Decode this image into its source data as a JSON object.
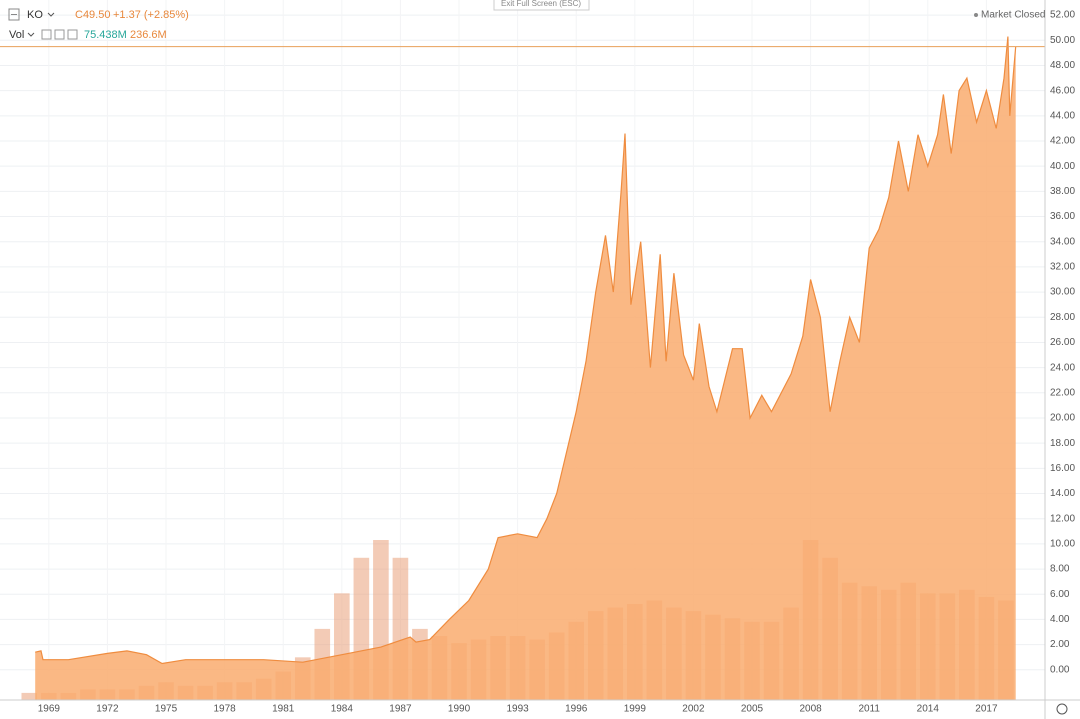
{
  "header": {
    "symbol": "KO",
    "close": "C49.50",
    "change": "+1.37 (+2.85%)",
    "vol_label": "Vol",
    "vol_value": "75.438M",
    "vol_avg": "236.6M",
    "status": "Market Closed",
    "fullscreen": "Exit Full Screen (ESC)"
  },
  "chart_data": {
    "type": "area",
    "series": [
      {
        "name": "KO",
        "color": "#ef8c3f",
        "x": [
          1968.3,
          1968.6,
          1968.7,
          1970,
          1972,
          1973,
          1974,
          1974.8,
          1976,
          1980,
          1982,
          1984,
          1986,
          1987.5,
          1987.8,
          1988.5,
          1989.5,
          1990.5,
          1991.5,
          1992,
          1993,
          1994,
          1994.5,
          1995,
          1996,
          1996.5,
          1997,
          1997.5,
          1997.9,
          1998.3,
          1998.5,
          1998.8,
          1999.3,
          1999.8,
          2000.3,
          2000.6,
          2001,
          2001.5,
          2002,
          2002.3,
          2002.8,
          2003.2,
          2003.6,
          2004,
          2004.5,
          2004.9,
          2005.5,
          2006,
          2007,
          2007.6,
          2008,
          2008.5,
          2009,
          2009.5,
          2010,
          2010.5,
          2011,
          2011.5,
          2012,
          2012.5,
          2013,
          2013.5,
          2014,
          2014.5,
          2014.8,
          2015.2,
          2015.6,
          2016,
          2016.5,
          2017,
          2017.5,
          2017.9,
          2018.1,
          2018.2,
          2018.5
        ],
        "values": [
          1.4,
          1.5,
          0.8,
          0.8,
          1.3,
          1.5,
          1.2,
          0.5,
          0.8,
          0.8,
          0.6,
          1.2,
          1.8,
          2.6,
          2.2,
          2.4,
          4.0,
          5.5,
          8.0,
          10.5,
          10.8,
          10.5,
          12.0,
          14.0,
          20.5,
          24.5,
          30.0,
          34.5,
          30.0,
          38.0,
          42.6,
          29.0,
          34.0,
          24.0,
          33.0,
          24.5,
          31.5,
          25.0,
          23.0,
          27.5,
          22.5,
          20.5,
          23.0,
          25.5,
          25.5,
          20.0,
          21.8,
          20.5,
          23.5,
          26.5,
          31.0,
          28.0,
          20.5,
          24.5,
          28.0,
          26.0,
          33.5,
          35.0,
          37.5,
          42.0,
          38.0,
          42.5,
          40.0,
          42.5,
          45.7,
          41.0,
          46.0,
          47.0,
          43.5,
          46.0,
          43.0,
          47.0,
          50.3,
          44.0,
          49.5
        ]
      }
    ],
    "volume": {
      "color": "#e9a07a",
      "x": [
        1968,
        1969,
        1970,
        1971,
        1972,
        1973,
        1974,
        1975,
        1976,
        1977,
        1978,
        1979,
        1980,
        1981,
        1982,
        1983,
        1984,
        1985,
        1986,
        1987,
        1988,
        1989,
        1990,
        1991,
        1992,
        1993,
        1994,
        1995,
        1996,
        1997,
        1998,
        1999,
        2000,
        2001,
        2002,
        2003,
        2004,
        2005,
        2006,
        2007,
        2008,
        2009,
        2010,
        2011,
        2012,
        2013,
        2014,
        2015,
        2016,
        2017,
        2018
      ],
      "values": [
        2,
        2,
        2,
        3,
        3,
        3,
        4,
        5,
        4,
        4,
        5,
        5,
        6,
        8,
        12,
        20,
        30,
        40,
        45,
        40,
        20,
        18,
        16,
        17,
        18,
        18,
        17,
        19,
        22,
        25,
        26,
        27,
        28,
        26,
        25,
        24,
        23,
        22,
        22,
        26,
        45,
        40,
        33,
        32,
        31,
        33,
        30,
        30,
        31,
        29,
        28
      ]
    },
    "last_price": 49.5,
    "xlim": [
      1966.5,
      2020
    ],
    "xticks": [
      1969,
      1972,
      1975,
      1978,
      1981,
      1984,
      1987,
      1990,
      1993,
      1996,
      1999,
      2002,
      2005,
      2008,
      2011,
      2014,
      2017
    ],
    "ylim": [
      -2.4,
      53.2
    ],
    "yticks": [
      {
        "value": 0,
        "label": "0.00"
      },
      {
        "value": 2,
        "label": "2.00"
      },
      {
        "value": 4,
        "label": "4.00"
      },
      {
        "value": 6,
        "label": "6.00"
      },
      {
        "value": 8,
        "label": "8.00"
      },
      {
        "value": 10,
        "label": "10.00"
      },
      {
        "value": 12,
        "label": "12.00"
      },
      {
        "value": 14,
        "label": "14.00"
      },
      {
        "value": 16,
        "label": "16.00"
      },
      {
        "value": 18,
        "label": "18.00"
      },
      {
        "value": 20,
        "label": "20.00"
      },
      {
        "value": 22,
        "label": "22.00"
      },
      {
        "value": 24,
        "label": "24.00"
      },
      {
        "value": 26,
        "label": "26.00"
      },
      {
        "value": 28,
        "label": "28.00"
      },
      {
        "value": 30,
        "label": "30.00"
      },
      {
        "value": 32,
        "label": "32.00"
      },
      {
        "value": 34,
        "label": "34.00"
      },
      {
        "value": 36,
        "label": "36.00"
      },
      {
        "value": 38,
        "label": "38.00"
      },
      {
        "value": 40,
        "label": "40.00"
      },
      {
        "value": 42,
        "label": "42.00"
      },
      {
        "value": 44,
        "label": "44.00"
      },
      {
        "value": 46,
        "label": "46.00"
      },
      {
        "value": 48,
        "label": "48.00"
      },
      {
        "value": 50,
        "label": "50.00"
      },
      {
        "value": 52,
        "label": "52.00"
      }
    ],
    "grid": true
  }
}
